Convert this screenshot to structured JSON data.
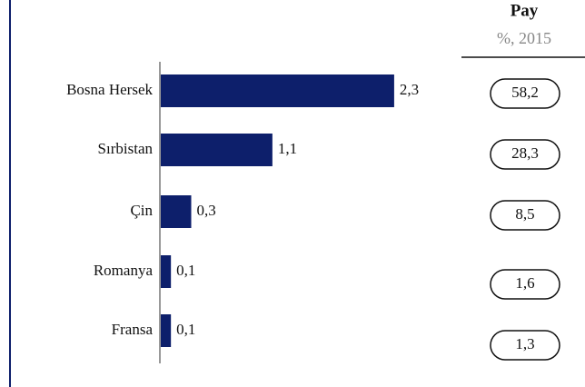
{
  "chart_data": {
    "type": "bar",
    "categories": [
      "Bosna Hersek",
      "Sırbistan",
      "Çin",
      "Romanya",
      "Fransa"
    ],
    "values": [
      2.3,
      1.1,
      0.3,
      0.1,
      0.1
    ],
    "value_labels": [
      "2,3",
      "1,1",
      "0,3",
      "0,1",
      "0,1"
    ],
    "color": "#0d1f6b",
    "share": {
      "title": "Pay",
      "subtitle": "%, 2015",
      "values": [
        58.2,
        28.3,
        8.5,
        1.6,
        1.3
      ],
      "value_labels": [
        "58,2",
        "28,3",
        "8,5",
        "1,6",
        "1,3"
      ]
    }
  }
}
